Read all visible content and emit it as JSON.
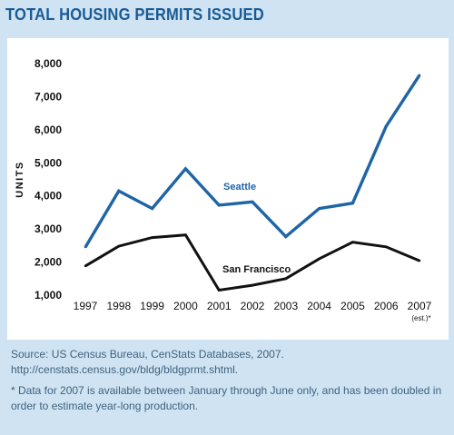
{
  "title": "TOTAL HOUSING PERMITS ISSUED",
  "colors": {
    "seattle": "#1f65a6",
    "san_francisco": "#111111",
    "title": "#1a5b95",
    "background": "#cfe3f2"
  },
  "chart_data": {
    "type": "line",
    "title": "TOTAL HOUSING PERMITS ISSUED",
    "ylabel": "UNITS",
    "xlabel": "",
    "ylim": [
      1000,
      8000
    ],
    "yticks": [
      1000,
      2000,
      3000,
      4000,
      5000,
      6000,
      7000,
      8000
    ],
    "ytick_labels": [
      "1,000",
      "2,000",
      "3,000",
      "4,000",
      "5,000",
      "6,000",
      "7,000",
      "8,000"
    ],
    "categories": [
      "1997",
      "1998",
      "1999",
      "2000",
      "2001",
      "2002",
      "2003",
      "2004",
      "2005",
      "2006",
      "2007"
    ],
    "category_note": "(est.)*",
    "grid": false,
    "series": [
      {
        "name": "Seattle",
        "values": [
          2450,
          4150,
          3620,
          4820,
          3720,
          3820,
          2770,
          3620,
          3780,
          6100,
          7650
        ]
      },
      {
        "name": "San Francisco",
        "values": [
          1880,
          2480,
          2740,
          2820,
          1150,
          1300,
          1500,
          2100,
          2600,
          2460,
          2040
        ]
      }
    ]
  },
  "footer": {
    "source": "Source: US Census Bureau, CenStats Databases, 2007. http://censtats.census.gov/bldg/bldgprmt.shtml.",
    "note": "* Data for 2007 is available between January through June only, and has been doubled in order to estimate year-long production."
  }
}
